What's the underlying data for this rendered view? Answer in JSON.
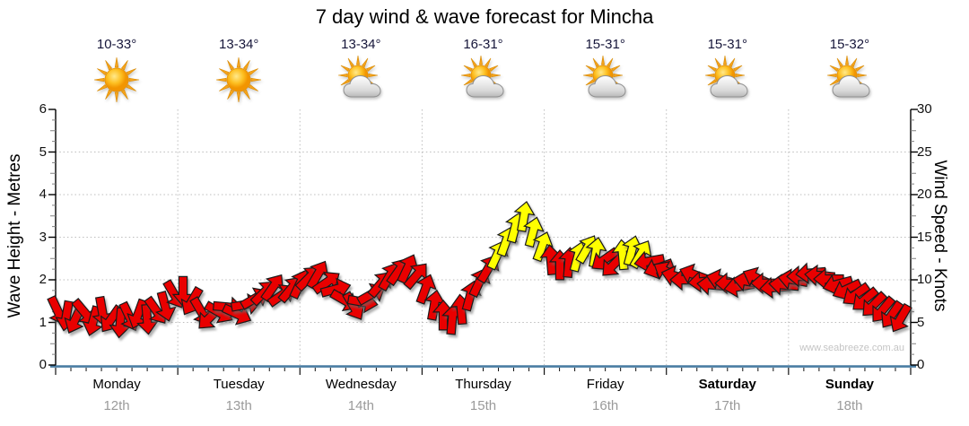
{
  "title": "7 day wind & wave forecast for Mincha",
  "watermark": "www.seabreeze.com.au",
  "days": [
    {
      "name": "Monday",
      "date": "12th",
      "temp": "10-33°",
      "icon": "sun",
      "bold": false
    },
    {
      "name": "Tuesday",
      "date": "13th",
      "temp": "13-34°",
      "icon": "sun",
      "bold": false
    },
    {
      "name": "Wednesday",
      "date": "14th",
      "temp": "13-34°",
      "icon": "sun-cloud",
      "bold": false
    },
    {
      "name": "Thursday",
      "date": "15th",
      "temp": "16-31°",
      "icon": "sun-cloud",
      "bold": false
    },
    {
      "name": "Friday",
      "date": "16th",
      "temp": "15-31°",
      "icon": "sun-cloud",
      "bold": false
    },
    {
      "name": "Saturday",
      "date": "17th",
      "temp": "15-31°",
      "icon": "sun-cloud",
      "bold": true
    },
    {
      "name": "Sunday",
      "date": "18th",
      "temp": "15-32°",
      "icon": "sun-cloud",
      "bold": true
    }
  ],
  "chart_data": {
    "type": "wind-arrows",
    "title": "7 day wind & wave forecast for Mincha",
    "categories": [
      "Monday 12th",
      "Tuesday 13th",
      "Wednesday 14th",
      "Thursday 15th",
      "Friday 16th",
      "Saturday 17th",
      "Sunday 18th"
    ],
    "y_left": {
      "label": "Wave Height - Metres",
      "range": [
        0,
        6
      ],
      "ticks": [
        0,
        1,
        2,
        3,
        4,
        5,
        6
      ]
    },
    "y_right": {
      "label": "Wind Speed - Knots",
      "range": [
        0,
        30
      ],
      "ticks": [
        0,
        5,
        10,
        15,
        20,
        25,
        30
      ]
    },
    "grid": {
      "horizontal_every_metres": 1,
      "vertical_at_day_boundaries": true,
      "style": "dotted"
    },
    "arrow_colors": {
      "normal": "#e90000",
      "strong": "#ffff00"
    },
    "arrow_format": [
      "x_px",
      "wind_knots",
      "direction_deg_0_is_up",
      "color r=red y=yellow"
    ],
    "arrows": [
      [
        64,
        6.4,
        155,
        "r"
      ],
      [
        74,
        5.8,
        190,
        "r"
      ],
      [
        84,
        5.4,
        205,
        "r"
      ],
      [
        94,
        6.2,
        140,
        "r"
      ],
      [
        104,
        5.2,
        195,
        "r"
      ],
      [
        114,
        6.3,
        170,
        "r"
      ],
      [
        124,
        5.4,
        215,
        "r"
      ],
      [
        134,
        5.0,
        185,
        "r"
      ],
      [
        144,
        5.7,
        155,
        "r"
      ],
      [
        154,
        6.0,
        200,
        "r"
      ],
      [
        164,
        5.4,
        175,
        "r"
      ],
      [
        174,
        6.4,
        145,
        "r"
      ],
      [
        184,
        6.9,
        165,
        "r"
      ],
      [
        194,
        8.3,
        150,
        "r"
      ],
      [
        204,
        8.7,
        180,
        "r"
      ],
      [
        214,
        7.5,
        210,
        "r"
      ],
      [
        224,
        6.3,
        150,
        "r"
      ],
      [
        234,
        5.6,
        225,
        "r"
      ],
      [
        244,
        6.2,
        120,
        "r"
      ],
      [
        254,
        6.8,
        95,
        "r"
      ],
      [
        264,
        6.0,
        115,
        "r"
      ],
      [
        274,
        7.1,
        80,
        "r"
      ],
      [
        284,
        7.8,
        60,
        "r"
      ],
      [
        294,
        8.5,
        45,
        "r"
      ],
      [
        304,
        9.1,
        35,
        "r"
      ],
      [
        314,
        8.2,
        55,
        "r"
      ],
      [
        324,
        8.9,
        40,
        "r"
      ],
      [
        334,
        9.5,
        25,
        "r"
      ],
      [
        344,
        10.2,
        45,
        "r"
      ],
      [
        354,
        10.6,
        30,
        "r"
      ],
      [
        364,
        9.7,
        55,
        "r"
      ],
      [
        374,
        8.9,
        75,
        "r"
      ],
      [
        384,
        7.6,
        120,
        "r"
      ],
      [
        394,
        6.9,
        150,
        "r"
      ],
      [
        404,
        7.4,
        100,
        "r"
      ],
      [
        414,
        8.3,
        60,
        "r"
      ],
      [
        424,
        9.5,
        40,
        "r"
      ],
      [
        434,
        10.4,
        30,
        "r"
      ],
      [
        444,
        11.0,
        35,
        "r"
      ],
      [
        454,
        11.3,
        25,
        "r"
      ],
      [
        464,
        10.5,
        40,
        "r"
      ],
      [
        474,
        8.9,
        20,
        "r"
      ],
      [
        484,
        7.0,
        10,
        "r"
      ],
      [
        494,
        5.8,
        0,
        "r"
      ],
      [
        504,
        5.3,
        5,
        "r"
      ],
      [
        514,
        6.5,
        355,
        "r"
      ],
      [
        524,
        8.1,
        15,
        "r"
      ],
      [
        534,
        9.7,
        25,
        "r"
      ],
      [
        544,
        11.3,
        30,
        "r"
      ],
      [
        554,
        12.9,
        25,
        "y"
      ],
      [
        564,
        14.5,
        20,
        "y"
      ],
      [
        574,
        16.1,
        15,
        "y"
      ],
      [
        584,
        17.4,
        10,
        "y"
      ],
      [
        594,
        15.6,
        15,
        "y"
      ],
      [
        604,
        13.9,
        20,
        "y"
      ],
      [
        614,
        12.3,
        355,
        "r"
      ],
      [
        624,
        11.7,
        0,
        "r"
      ],
      [
        634,
        12.0,
        5,
        "r"
      ],
      [
        644,
        12.7,
        15,
        "y"
      ],
      [
        654,
        13.6,
        30,
        "y"
      ],
      [
        664,
        13.2,
        10,
        "y"
      ],
      [
        674,
        12.4,
        235,
        "r"
      ],
      [
        684,
        11.8,
        225,
        "r"
      ],
      [
        694,
        12.9,
        355,
        "y"
      ],
      [
        704,
        13.4,
        15,
        "y"
      ],
      [
        714,
        13.0,
        30,
        "y"
      ],
      [
        724,
        12.2,
        260,
        "r"
      ],
      [
        734,
        11.4,
        250,
        "r"
      ],
      [
        744,
        10.9,
        300,
        "r"
      ],
      [
        754,
        10.4,
        285,
        "r"
      ],
      [
        764,
        10.0,
        270,
        "r"
      ],
      [
        774,
        10.6,
        290,
        "r"
      ],
      [
        784,
        9.8,
        265,
        "r"
      ],
      [
        794,
        9.4,
        275,
        "r"
      ],
      [
        804,
        10.0,
        285,
        "r"
      ],
      [
        814,
        9.6,
        270,
        "r"
      ],
      [
        824,
        9.2,
        260,
        "r"
      ],
      [
        834,
        9.8,
        280,
        "r"
      ],
      [
        844,
        10.2,
        295,
        "r"
      ],
      [
        854,
        9.6,
        270,
        "r"
      ],
      [
        864,
        9.1,
        265,
        "r"
      ],
      [
        874,
        9.4,
        275,
        "r"
      ],
      [
        884,
        10.0,
        280,
        "r"
      ],
      [
        894,
        10.4,
        270,
        "r"
      ],
      [
        904,
        10.8,
        265,
        "r"
      ],
      [
        914,
        10.5,
        275,
        "r"
      ],
      [
        924,
        10.1,
        270,
        "r"
      ],
      [
        934,
        9.5,
        255,
        "r"
      ],
      [
        944,
        8.9,
        245,
        "r"
      ],
      [
        954,
        8.3,
        235,
        "r"
      ],
      [
        964,
        7.7,
        230,
        "r"
      ],
      [
        974,
        7.1,
        225,
        "r"
      ],
      [
        984,
        6.5,
        220,
        "r"
      ],
      [
        994,
        5.9,
        215,
        "r"
      ],
      [
        1004,
        5.5,
        210,
        "r"
      ]
    ]
  }
}
